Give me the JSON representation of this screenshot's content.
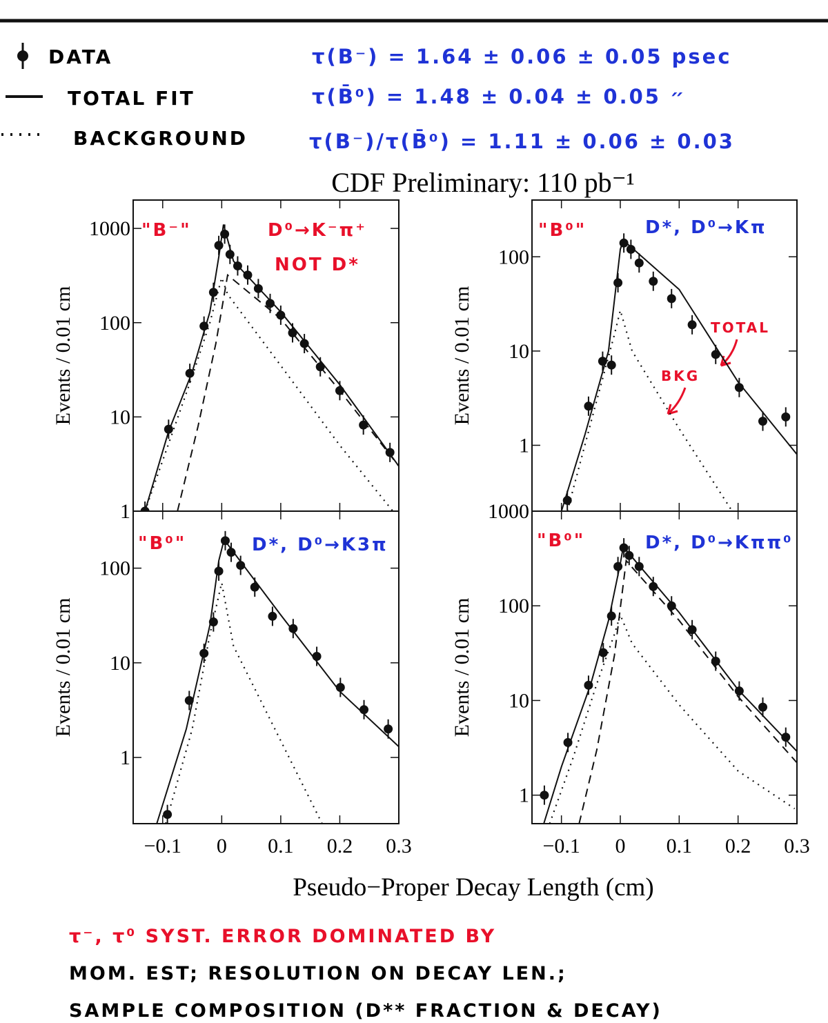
{
  "header": {
    "legend": [
      "DATA",
      "TOTAL FIT",
      "BACKGROUND"
    ],
    "results": [
      "τ(B⁻) = 1.64 ± 0.06 ± 0.05 psec",
      "τ(B̄⁰) = 1.48 ± 0.04 ± 0.05  ״",
      "τ(B⁻)/τ(B̄⁰) = 1.11 ± 0.06 ± 0.03"
    ]
  },
  "title": "CDF Preliminary:  110 pb⁻¹",
  "xlabel": "Pseudo−Proper Decay Length (cm)",
  "chart_data": [
    {
      "type": "line",
      "label": "\"B⁻\"",
      "decay": [
        "D⁰→K⁻π⁺",
        "NOT D*"
      ],
      "ylabel": "Events / 0.01 cm",
      "log": true,
      "xlim": [
        -0.15,
        0.3
      ],
      "ylim": [
        1,
        2000
      ],
      "yticks": [
        1,
        10,
        100,
        1000
      ],
      "xticks": [
        {
          "value": -0.1,
          "label": "−0.1"
        },
        0,
        0.1,
        0.2,
        0.3
      ],
      "xtick_labels": false,
      "series": [
        {
          "name": "DATA",
          "style": "points",
          "color": "#111111",
          "x": [
            -0.13,
            -0.09,
            -0.054,
            -0.03,
            -0.014,
            -0.005,
            0.005,
            0.014,
            0.027,
            0.044,
            0.062,
            0.082,
            0.1,
            0.12,
            0.14,
            0.167,
            0.2,
            0.24,
            0.285
          ],
          "values": [
            1,
            7.4,
            29,
            92,
            210,
            660,
            870,
            530,
            400,
            320,
            230,
            160,
            120,
            78,
            60,
            34,
            19,
            8.2,
            4.2
          ]
        },
        {
          "name": "TOTAL FIT",
          "style": "solid",
          "color": "#111111",
          "x": [
            -0.13,
            -0.09,
            -0.05,
            -0.02,
            -0.005,
            0.003,
            0.02,
            0.1,
            0.2,
            0.3
          ],
          "values": [
            1,
            7,
            30,
            130,
            500,
            1100,
            450,
            130,
            22,
            3
          ]
        },
        {
          "name": "BACKGROUND",
          "style": "dotted",
          "color": "#111111",
          "x": [
            -0.13,
            -0.05,
            -0.02,
            0,
            0.01,
            0.1,
            0.2,
            0.29
          ],
          "values": [
            1,
            27,
            100,
            300,
            200,
            35,
            5,
            1
          ]
        },
        {
          "style": "dashed",
          "color": "#111111",
          "x": [
            -0.075,
            -0.04,
            -0.01,
            0.01,
            0.1,
            0.2,
            0.3
          ],
          "values": [
            1,
            8,
            60,
            320,
            110,
            19,
            3
          ]
        }
      ]
    },
    {
      "type": "line",
      "label": "\"B⁰\"",
      "decay": [
        "D*, D⁰→Kπ"
      ],
      "ylabel": "Events / 0.01 cm",
      "annotations": [
        "TOTAL",
        "BKG"
      ],
      "log": true,
      "xlim": [
        -0.15,
        0.3
      ],
      "ylim": [
        0.2,
        400
      ],
      "yticks": [
        1,
        10,
        100
      ],
      "xticks": [
        {
          "value": -0.1,
          "label": "−0.1"
        },
        0,
        0.1,
        0.2,
        0.3
      ],
      "xtick_labels": false,
      "series": [
        {
          "style": "points",
          "color": "#111111",
          "x": [
            -0.09,
            -0.054,
            -0.03,
            -0.015,
            -0.004,
            0.006,
            0.018,
            0.032,
            0.056,
            0.087,
            0.122,
            0.162,
            0.202,
            0.242,
            0.281
          ],
          "values": [
            0.26,
            2.6,
            7.8,
            7.1,
            53,
            140,
            120,
            86,
            55,
            36,
            19,
            9.2,
            4.1,
            1.8,
            2.0
          ]
        },
        {
          "style": "solid",
          "color": "#111111",
          "x": [
            -0.1,
            -0.06,
            -0.02,
            0,
            0.005,
            0.1,
            0.2,
            0.3
          ],
          "values": [
            0.2,
            1.3,
            10,
            120,
            150,
            45,
            4.7,
            0.8
          ]
        },
        {
          "style": "dotted",
          "color": "#111111",
          "x": [
            -0.09,
            -0.04,
            -0.01,
            0,
            0.02,
            0.1,
            0.19
          ],
          "values": [
            0.2,
            3,
            15,
            27,
            10,
            1.5,
            0.2
          ]
        }
      ]
    },
    {
      "type": "line",
      "label": "\"B⁰\"",
      "decay": [
        "D*, D⁰→K3π"
      ],
      "ylabel": "Events / 0.01 cm",
      "log": true,
      "xlim": [
        -0.15,
        0.3
      ],
      "ylim": [
        0.2,
        400
      ],
      "yticks": [
        1,
        10,
        100
      ],
      "xticks": [
        {
          "value": -0.1,
          "label": "−0.1"
        },
        0,
        0.1,
        0.2,
        0.3
      ],
      "xtick_labels": true,
      "series": [
        {
          "style": "points",
          "color": "#111111",
          "x": [
            -0.092,
            -0.055,
            -0.03,
            -0.014,
            -0.005,
            0.006,
            0.016,
            0.032,
            0.056,
            0.086,
            0.121,
            0.161,
            0.201,
            0.241,
            0.282
          ],
          "values": [
            0.25,
            4.0,
            12.6,
            27,
            93,
            195,
            147,
            107,
            63,
            31,
            23,
            11.7,
            5.5,
            3.2,
            2.0
          ]
        },
        {
          "style": "solid",
          "color": "#111111",
          "x": [
            -0.11,
            -0.06,
            -0.02,
            -0.005,
            0.004,
            0.1,
            0.2,
            0.3
          ],
          "values": [
            0.2,
            2,
            25,
            120,
            200,
            32,
            5,
            1.3
          ]
        },
        {
          "style": "dotted",
          "color": "#111111",
          "x": [
            -0.095,
            -0.05,
            -0.02,
            0,
            0.02,
            0.1,
            0.17
          ],
          "values": [
            0.2,
            2,
            20,
            70,
            15,
            1.5,
            0.2
          ]
        }
      ]
    },
    {
      "type": "line",
      "label": "\"B⁰\"",
      "decay": [
        "D*, D⁰→Kππ⁰"
      ],
      "ylabel": "Events / 0.01 cm",
      "log": true,
      "xlim": [
        -0.15,
        0.3
      ],
      "ylim": [
        0.5,
        1000
      ],
      "yticks": [
        1,
        10,
        100,
        1000
      ],
      "xticks": [
        {
          "value": -0.1,
          "label": "−0.1"
        },
        0,
        0.1,
        0.2,
        0.3
      ],
      "xtick_labels": true,
      "series": [
        {
          "style": "points",
          "color": "#111111",
          "x": [
            -0.129,
            -0.089,
            -0.054,
            -0.029,
            -0.015,
            -0.004,
            0.006,
            0.015,
            0.032,
            0.056,
            0.087,
            0.122,
            0.162,
            0.202,
            0.242,
            0.281
          ],
          "values": [
            1.0,
            3.6,
            14.5,
            32,
            78,
            260,
            410,
            340,
            260,
            160,
            100,
            56,
            26,
            12.6,
            8.5,
            4.1
          ]
        },
        {
          "style": "solid",
          "color": "#111111",
          "x": [
            -0.13,
            -0.1,
            -0.05,
            -0.02,
            0,
            0.005,
            0.1,
            0.2,
            0.3
          ],
          "values": [
            0.5,
            2,
            15,
            70,
            280,
            420,
            85,
            13,
            2.9
          ]
        },
        {
          "style": "dotted",
          "color": "#111111",
          "x": [
            -0.12,
            -0.08,
            -0.04,
            -0.01,
            0,
            0.02,
            0.1,
            0.2,
            0.296
          ],
          "values": [
            0.5,
            2.5,
            15,
            50,
            80,
            40,
            9,
            1.8,
            0.72
          ]
        },
        {
          "style": "dashed",
          "color": "#111111",
          "x": [
            -0.07,
            -0.04,
            -0.01,
            0.01,
            0.1,
            0.2,
            0.3
          ],
          "values": [
            0.5,
            3,
            30,
            300,
            70,
            11,
            2.2
          ]
        }
      ]
    }
  ],
  "footer": [
    "τ⁻, τ⁰ SYST. ERROR DOMINATED BY",
    "MOM. EST; RESOLUTION ON DECAY LEN.;",
    "SAMPLE COMPOSITION (D** FRACTION & DECAY)"
  ]
}
